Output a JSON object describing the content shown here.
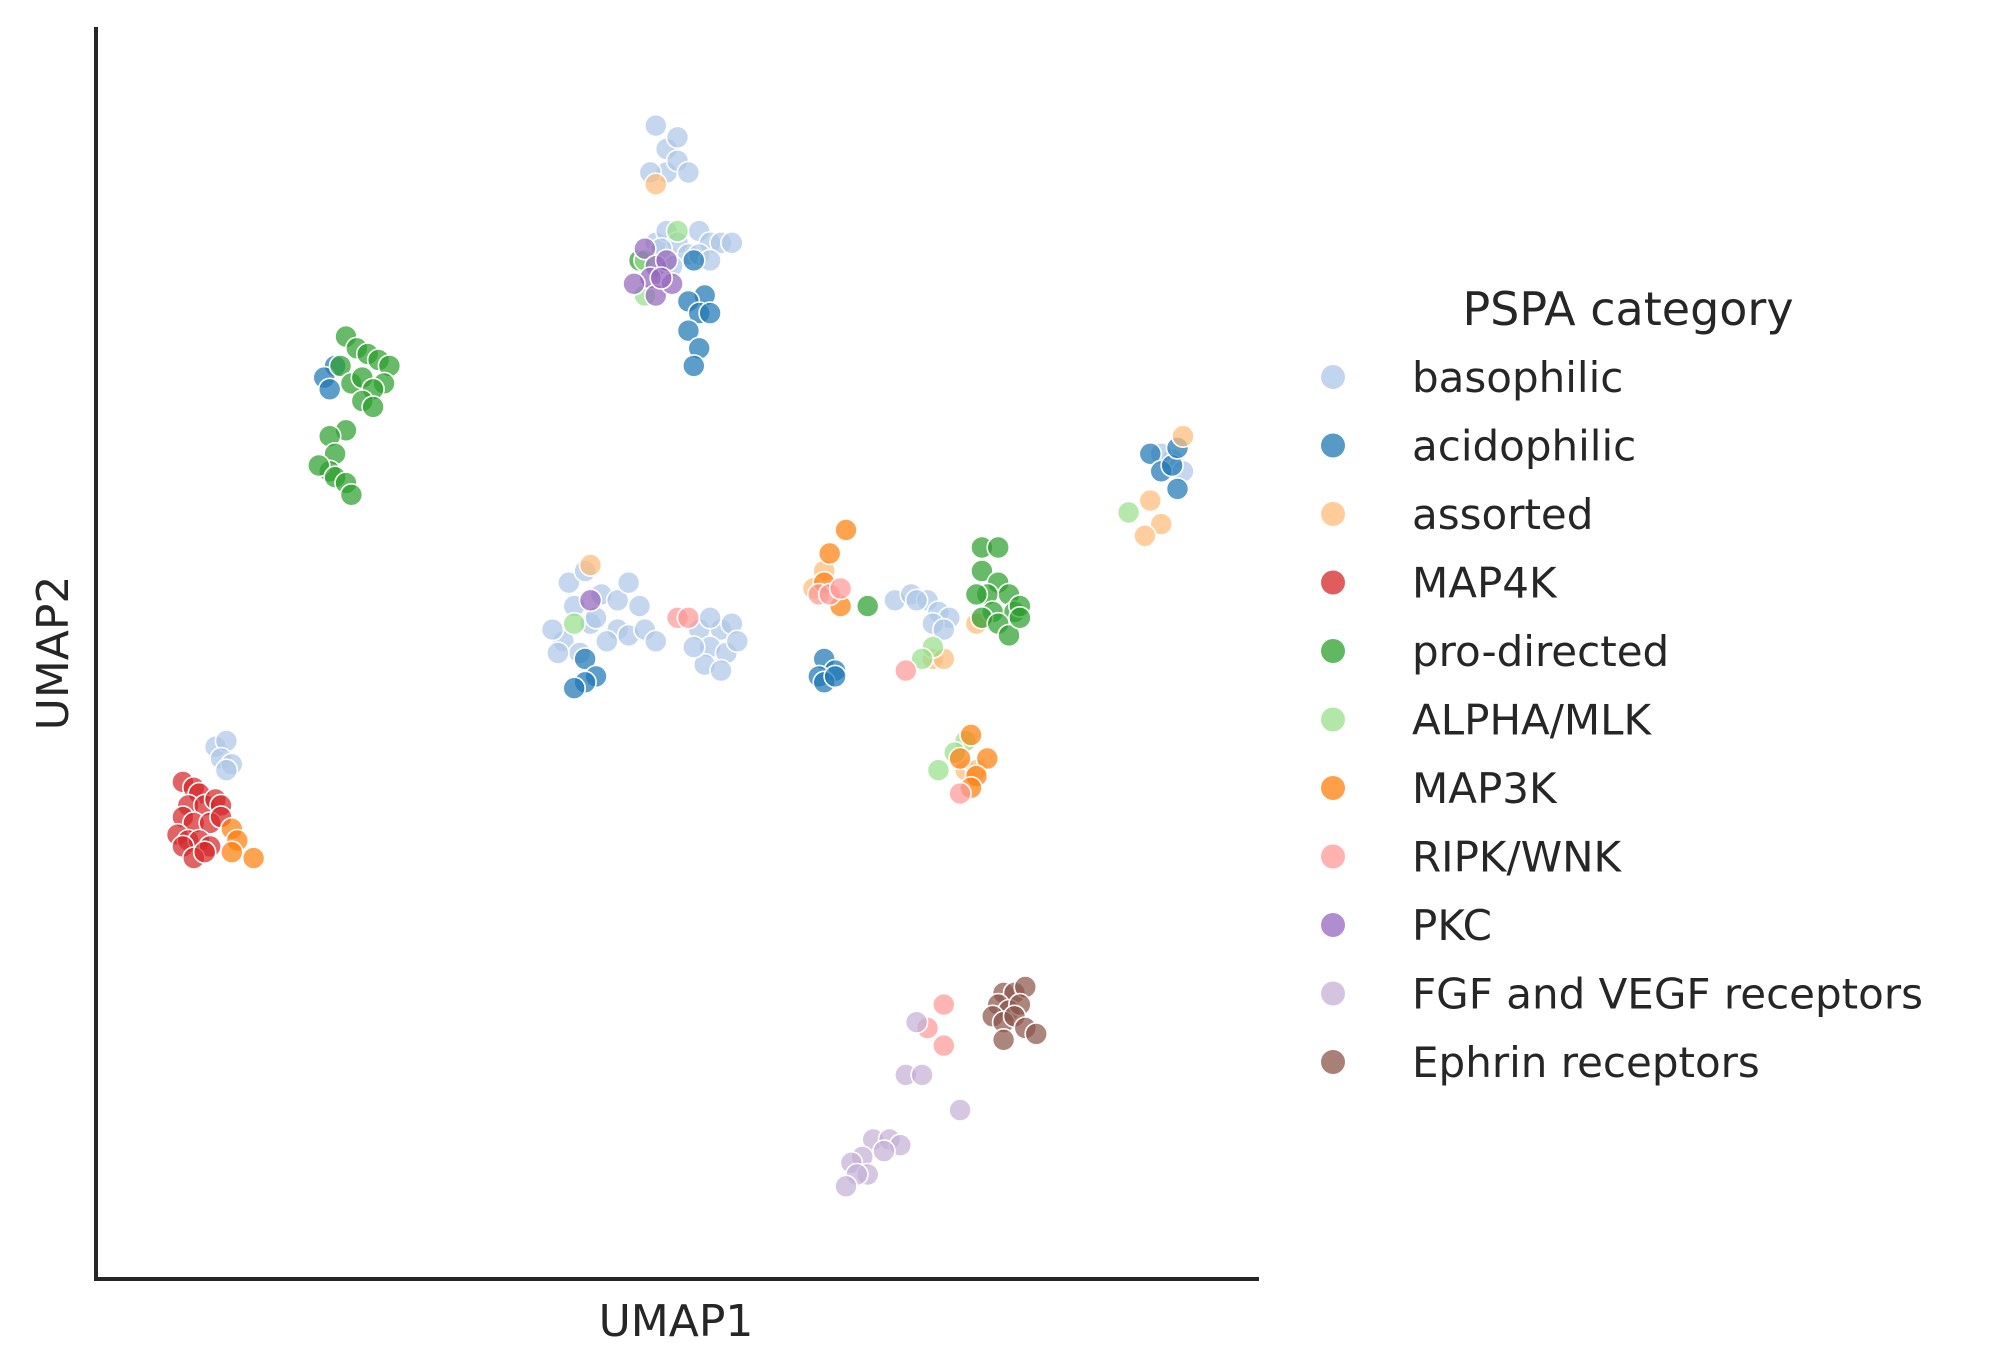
{
  "chart_data": {
    "type": "scatter",
    "title": "",
    "xlabel": "UMAP1",
    "ylabel": "UMAP2",
    "xlim": [
      0,
      10
    ],
    "ylim": [
      0,
      10
    ],
    "grid": false,
    "ticks": false,
    "legend": {
      "title": "PSPA category",
      "placement": "right-outside"
    },
    "series": [
      {
        "name": "basophilic",
        "color": "#aec7e8",
        "points": [
          [
            4.8,
            9.5
          ],
          [
            4.9,
            9.3
          ],
          [
            5.0,
            9.4
          ],
          [
            4.9,
            9.1
          ],
          [
            5.0,
            9.2
          ],
          [
            5.1,
            9.1
          ],
          [
            4.75,
            9.1
          ],
          [
            4.8,
            8.5
          ],
          [
            4.9,
            8.6
          ],
          [
            5.0,
            8.5
          ],
          [
            5.1,
            8.4
          ],
          [
            5.2,
            8.6
          ],
          [
            5.3,
            8.5
          ],
          [
            5.4,
            8.5
          ],
          [
            5.5,
            8.5
          ],
          [
            4.95,
            8.3
          ],
          [
            5.2,
            8.4
          ],
          [
            5.3,
            8.35
          ],
          [
            4.85,
            8.45
          ],
          [
            4.0,
            5.6
          ],
          [
            4.15,
            5.7
          ],
          [
            4.3,
            5.5
          ],
          [
            4.45,
            5.45
          ],
          [
            4.55,
            5.6
          ],
          [
            4.65,
            5.4
          ],
          [
            4.45,
            5.2
          ],
          [
            4.2,
            5.25
          ],
          [
            3.95,
            5.1
          ],
          [
            3.85,
            5.2
          ],
          [
            4.05,
            5.4
          ],
          [
            4.35,
            5.1
          ],
          [
            4.55,
            5.15
          ],
          [
            3.9,
            5.0
          ],
          [
            4.1,
            5.0
          ],
          [
            4.25,
            5.3
          ],
          [
            4.7,
            5.2
          ],
          [
            4.8,
            5.1
          ],
          [
            5.2,
            5.2
          ],
          [
            5.4,
            5.2
          ],
          [
            5.5,
            5.25
          ],
          [
            5.3,
            5.05
          ],
          [
            5.45,
            5.0
          ],
          [
            5.25,
            4.9
          ],
          [
            5.4,
            4.85
          ],
          [
            5.55,
            5.1
          ],
          [
            5.3,
            5.3
          ],
          [
            5.15,
            5.05
          ],
          [
            7.0,
            5.45
          ],
          [
            7.15,
            5.5
          ],
          [
            7.3,
            5.45
          ],
          [
            7.4,
            5.35
          ],
          [
            7.5,
            5.3
          ],
          [
            7.35,
            5.25
          ],
          [
            7.45,
            5.2
          ],
          [
            7.2,
            5.45
          ],
          [
            0.75,
            4.2
          ],
          [
            0.85,
            4.25
          ],
          [
            0.8,
            4.1
          ],
          [
            0.9,
            4.05
          ],
          [
            0.85,
            4.0
          ],
          [
            9.55,
            6.65
          ],
          [
            9.65,
            6.55
          ],
          [
            9.45,
            6.7
          ]
        ]
      },
      {
        "name": "acidophilic",
        "color": "#1f77b4",
        "points": [
          [
            5.15,
            8.35
          ],
          [
            5.25,
            8.05
          ],
          [
            5.1,
            8.0
          ],
          [
            5.2,
            7.9
          ],
          [
            5.1,
            7.75
          ],
          [
            5.3,
            7.9
          ],
          [
            5.2,
            7.6
          ],
          [
            5.15,
            7.45
          ],
          [
            1.85,
            7.45
          ],
          [
            1.75,
            7.35
          ],
          [
            1.8,
            7.25
          ],
          [
            4.15,
            4.95
          ],
          [
            4.25,
            4.8
          ],
          [
            4.15,
            4.75
          ],
          [
            4.05,
            4.7
          ],
          [
            6.35,
            4.95
          ],
          [
            6.45,
            4.85
          ],
          [
            6.3,
            4.8
          ],
          [
            6.35,
            4.75
          ],
          [
            6.45,
            4.8
          ],
          [
            9.35,
            6.7
          ],
          [
            9.45,
            6.55
          ],
          [
            9.55,
            6.6
          ],
          [
            9.6,
            6.75
          ],
          [
            9.6,
            6.4
          ]
        ]
      },
      {
        "name": "assorted",
        "color": "#ffbb78",
        "points": [
          [
            4.8,
            9.0
          ],
          [
            4.2,
            5.75
          ],
          [
            6.35,
            5.7
          ],
          [
            6.25,
            5.55
          ],
          [
            7.75,
            5.25
          ],
          [
            7.35,
            4.95
          ],
          [
            7.45,
            4.95
          ],
          [
            7.65,
            4.0
          ],
          [
            7.75,
            4.0
          ],
          [
            9.65,
            6.85
          ],
          [
            9.35,
            6.3
          ],
          [
            9.45,
            6.1
          ],
          [
            9.3,
            6.0
          ]
        ]
      },
      {
        "name": "MAP4K",
        "color": "#d62728",
        "points": [
          [
            0.45,
            3.9
          ],
          [
            0.55,
            3.85
          ],
          [
            0.6,
            3.8
          ],
          [
            0.5,
            3.7
          ],
          [
            0.65,
            3.7
          ],
          [
            0.75,
            3.75
          ],
          [
            0.8,
            3.7
          ],
          [
            0.45,
            3.6
          ],
          [
            0.55,
            3.55
          ],
          [
            0.7,
            3.55
          ],
          [
            0.8,
            3.6
          ],
          [
            0.4,
            3.45
          ],
          [
            0.5,
            3.4
          ],
          [
            0.6,
            3.4
          ],
          [
            0.7,
            3.35
          ],
          [
            0.45,
            3.35
          ],
          [
            0.55,
            3.25
          ],
          [
            0.65,
            3.3
          ]
        ]
      },
      {
        "name": "pro-directed",
        "color": "#2ca02c",
        "points": [
          [
            1.95,
            7.7
          ],
          [
            2.05,
            7.6
          ],
          [
            2.15,
            7.55
          ],
          [
            2.25,
            7.5
          ],
          [
            2.35,
            7.45
          ],
          [
            2.3,
            7.3
          ],
          [
            1.9,
            7.45
          ],
          [
            2.0,
            7.3
          ],
          [
            2.1,
            7.35
          ],
          [
            2.2,
            7.25
          ],
          [
            2.1,
            7.15
          ],
          [
            2.2,
            7.1
          ],
          [
            1.95,
            6.9
          ],
          [
            1.8,
            6.85
          ],
          [
            1.85,
            6.7
          ],
          [
            1.8,
            6.55
          ],
          [
            1.7,
            6.6
          ],
          [
            1.85,
            6.5
          ],
          [
            1.95,
            6.45
          ],
          [
            2.0,
            6.35
          ],
          [
            4.65,
            8.35
          ],
          [
            6.75,
            5.4
          ],
          [
            7.8,
            5.9
          ],
          [
            7.95,
            5.9
          ],
          [
            7.8,
            5.7
          ],
          [
            7.95,
            5.6
          ],
          [
            8.05,
            5.5
          ],
          [
            7.85,
            5.5
          ],
          [
            7.75,
            5.5
          ],
          [
            7.9,
            5.35
          ],
          [
            8.1,
            5.35
          ],
          [
            7.8,
            5.3
          ],
          [
            7.95,
            5.25
          ],
          [
            8.05,
            5.15
          ],
          [
            8.15,
            5.4
          ],
          [
            8.15,
            5.3
          ]
        ]
      },
      {
        "name": "ALPHA/MLK",
        "color": "#98df8a",
        "points": [
          [
            5.0,
            8.6
          ],
          [
            4.7,
            8.05
          ],
          [
            4.7,
            8.35
          ],
          [
            4.05,
            5.25
          ],
          [
            7.35,
            5.05
          ],
          [
            7.25,
            4.95
          ],
          [
            7.65,
            4.25
          ],
          [
            7.55,
            4.15
          ],
          [
            7.4,
            4.0
          ],
          [
            9.15,
            6.2
          ]
        ]
      },
      {
        "name": "MAP3K",
        "color": "#ff7f0e",
        "points": [
          [
            6.55,
            6.05
          ],
          [
            6.4,
            5.85
          ],
          [
            6.35,
            5.6
          ],
          [
            6.5,
            5.4
          ],
          [
            7.7,
            4.3
          ],
          [
            7.85,
            4.1
          ],
          [
            7.6,
            4.1
          ],
          [
            7.75,
            3.95
          ],
          [
            7.7,
            3.85
          ],
          [
            0.9,
            3.5
          ],
          [
            0.95,
            3.4
          ],
          [
            1.1,
            3.25
          ],
          [
            0.9,
            3.3
          ]
        ]
      },
      {
        "name": "RIPK/WNK",
        "color": "#ff9896",
        "points": [
          [
            5.0,
            5.3
          ],
          [
            5.1,
            5.3
          ],
          [
            6.3,
            5.5
          ],
          [
            6.4,
            5.5
          ],
          [
            6.5,
            5.55
          ],
          [
            7.1,
            4.85
          ],
          [
            7.6,
            3.8
          ],
          [
            7.45,
            2.0
          ],
          [
            7.3,
            1.8
          ],
          [
            7.45,
            1.65
          ]
        ]
      },
      {
        "name": "PKC",
        "color": "#9467bd",
        "points": [
          [
            4.7,
            8.45
          ],
          [
            4.8,
            8.3
          ],
          [
            4.9,
            8.35
          ],
          [
            4.75,
            8.2
          ],
          [
            4.6,
            8.15
          ],
          [
            4.8,
            8.05
          ],
          [
            4.95,
            8.15
          ],
          [
            4.85,
            8.2
          ],
          [
            4.2,
            5.45
          ]
        ]
      },
      {
        "name": "FGF and VEGF receptors",
        "color": "#c5b0d5",
        "points": [
          [
            7.2,
            1.85
          ],
          [
            7.1,
            1.4
          ],
          [
            7.25,
            1.4
          ],
          [
            7.6,
            1.1
          ],
          [
            6.8,
            0.85
          ],
          [
            6.95,
            0.85
          ],
          [
            7.05,
            0.8
          ],
          [
            6.9,
            0.75
          ],
          [
            6.7,
            0.7
          ],
          [
            6.6,
            0.65
          ],
          [
            6.75,
            0.55
          ],
          [
            6.65,
            0.55
          ],
          [
            6.55,
            0.45
          ]
        ]
      },
      {
        "name": "Ephrin receptors",
        "color": "#8c564b",
        "points": [
          [
            8.0,
            2.1
          ],
          [
            8.1,
            2.1
          ],
          [
            8.2,
            2.15
          ],
          [
            7.95,
            2.0
          ],
          [
            8.05,
            1.95
          ],
          [
            8.15,
            2.0
          ],
          [
            7.9,
            1.9
          ],
          [
            8.0,
            1.85
          ],
          [
            8.1,
            1.9
          ],
          [
            8.2,
            1.8
          ],
          [
            8.3,
            1.75
          ],
          [
            8.0,
            1.7
          ]
        ]
      }
    ]
  }
}
